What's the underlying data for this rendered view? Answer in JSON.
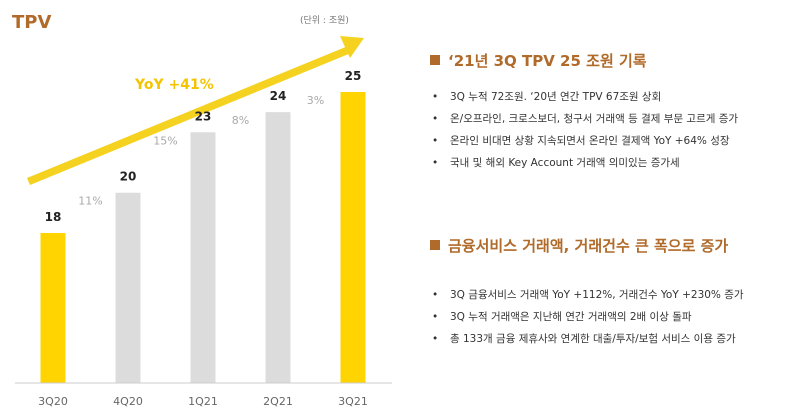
{
  "page_title": "TPV",
  "chart_data": {
    "type": "bar",
    "categories": [
      "3Q20",
      "4Q20",
      "1Q21",
      "2Q21",
      "3Q21"
    ],
    "values": [
      18,
      20,
      23,
      24,
      25
    ],
    "growth_labels": [
      "11%",
      "15%",
      "8%",
      "3%"
    ],
    "unit": "(단위 : 조원)",
    "trend_annotation": "YoY +41%",
    "highlight_color": "#ffd400",
    "bar_color": "#dcdcdc",
    "arrow_color": "#f5d21f",
    "ylim": [
      0,
      25
    ]
  },
  "sections": [
    {
      "title": "‘21년 3Q TPV 25 조원 기록",
      "bullet": "•",
      "items": [
        "3Q 누적 72조원. ‘20년 연간 TPV 67조원 상회",
        "온/오프라인, 크로스보더, 청구서 거래액 등 결제 부문 고르게 증가",
        "온라인 비대면 상황 지속되면서 온라인 결제액 YoY +64% 성장",
        "국내 및 해외 Key Account 거래액 의미있는 증가세"
      ]
    },
    {
      "title": "금융서비스 거래액, 거래건수 큰 폭으로 증가",
      "bullet": "•",
      "items": [
        "3Q 금융서비스 거래액 YoY +112%, 거래건수 YoY +230% 증가",
        "3Q 누적 거래액은 지난해 연간 거래액의 2배 이상 돌파",
        "총 133개 금융 제휴사와 연계한 대출/투자/보험 서비스 이용 증가"
      ]
    }
  ]
}
